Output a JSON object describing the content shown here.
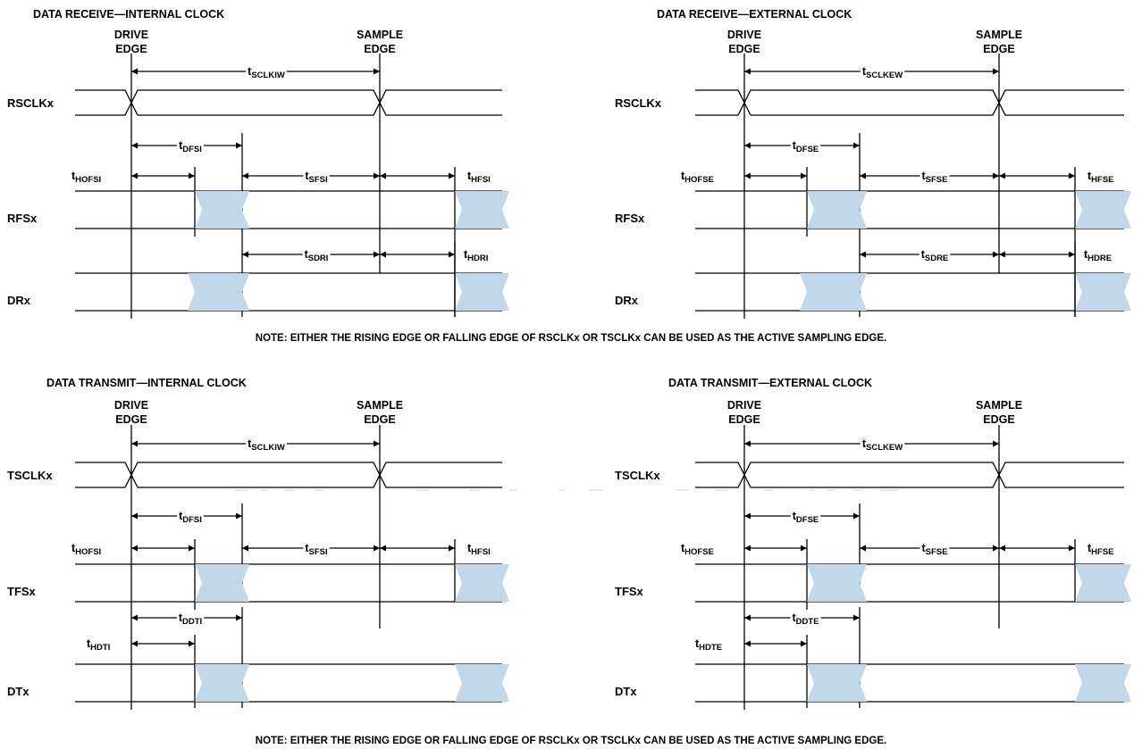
{
  "colors": {
    "line": "#000000",
    "fill": "#c2d8ea"
  },
  "notes": {
    "top": "NOTE: EITHER THE RISING EDGE OR FALLING EDGE OF RSCLKx OR TSCLKx CAN BE USED AS THE ACTIVE SAMPLING EDGE.",
    "bottom": "NOTE: EITHER THE RISING EDGE OR FALLING EDGE OF RSCLKx OR TSCLKx CAN BE USED AS THE ACTIVE SAMPLING EDGE."
  },
  "panels": [
    {
      "id": "rx-int",
      "title": "DATA RECEIVE—INTERNAL CLOCK",
      "drive_edge": [
        "DRIVE",
        "EDGE"
      ],
      "sample_edge": [
        "SAMPLE",
        "EDGE"
      ],
      "signals": [
        "RSCLKx",
        "RFSx",
        "DRx"
      ],
      "timing": {
        "period": {
          "t": "t",
          "sub": "SCLKIW"
        },
        "delay": {
          "t": "t",
          "sub": "DFSI"
        },
        "hold_off": {
          "t": "t",
          "sub": "HOFSI"
        },
        "setup": {
          "t": "t",
          "sub": "SFSI"
        },
        "hold": {
          "t": "t",
          "sub": "HFSI"
        },
        "setup2": {
          "t": "t",
          "sub": "SDRI"
        },
        "hold2": {
          "t": "t",
          "sub": "HDRI"
        }
      }
    },
    {
      "id": "rx-ext",
      "title": "DATA RECEIVE—EXTERNAL CLOCK",
      "drive_edge": [
        "DRIVE",
        "EDGE"
      ],
      "sample_edge": [
        "SAMPLE",
        "EDGE"
      ],
      "signals": [
        "RSCLKx",
        "RFSx",
        "DRx"
      ],
      "timing": {
        "period": {
          "t": "t",
          "sub": "SCLKEW"
        },
        "delay": {
          "t": "t",
          "sub": "DFSE"
        },
        "hold_off": {
          "t": "t",
          "sub": "HOFSE"
        },
        "setup": {
          "t": "t",
          "sub": "SFSE"
        },
        "hold": {
          "t": "t",
          "sub": "HFSE"
        },
        "setup2": {
          "t": "t",
          "sub": "SDRE"
        },
        "hold2": {
          "t": "t",
          "sub": "HDRE"
        }
      }
    },
    {
      "id": "tx-int",
      "title": "DATA TRANSMIT—INTERNAL CLOCK",
      "drive_edge": [
        "DRIVE",
        "EDGE"
      ],
      "sample_edge": [
        "SAMPLE",
        "EDGE"
      ],
      "signals": [
        "TSCLKx",
        "TFSx",
        "DTx"
      ],
      "timing": {
        "period": {
          "t": "t",
          "sub": "SCLKIW"
        },
        "delay": {
          "t": "t",
          "sub": "DFSI"
        },
        "hold_off": {
          "t": "t",
          "sub": "HOFSI"
        },
        "setup": {
          "t": "t",
          "sub": "SFSI"
        },
        "hold": {
          "t": "t",
          "sub": "HFSI"
        },
        "delay2": {
          "t": "t",
          "sub": "DDTI"
        },
        "hold_d": {
          "t": "t",
          "sub": "HDTI"
        }
      }
    },
    {
      "id": "tx-ext",
      "title": "DATA TRANSMIT—EXTERNAL CLOCK",
      "drive_edge": [
        "DRIVE",
        "EDGE"
      ],
      "sample_edge": [
        "SAMPLE",
        "EDGE"
      ],
      "signals": [
        "TSCLKx",
        "TFSx",
        "DTx"
      ],
      "timing": {
        "period": {
          "t": "t",
          "sub": "SCLKEW"
        },
        "delay": {
          "t": "t",
          "sub": "DFSE"
        },
        "hold_off": {
          "t": "t",
          "sub": "HOFSE"
        },
        "setup": {
          "t": "t",
          "sub": "SFSE"
        },
        "hold": {
          "t": "t",
          "sub": "HFSE"
        },
        "delay2": {
          "t": "t",
          "sub": "DDTE"
        },
        "hold_d": {
          "t": "t",
          "sub": "HDTE"
        }
      }
    }
  ]
}
